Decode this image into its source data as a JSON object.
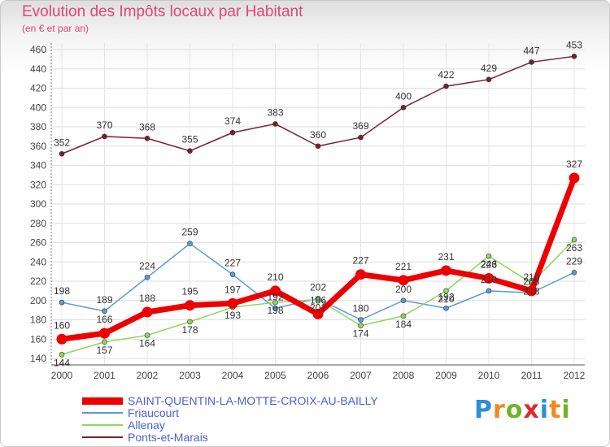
{
  "chart_data": {
    "type": "line",
    "title": "Evolution des Impôts locaux par Habitant",
    "subtitle": "(en € et par an)",
    "ylim": [
      140,
      460
    ],
    "yticks": [
      140,
      160,
      180,
      200,
      220,
      240,
      260,
      280,
      300,
      320,
      340,
      360,
      380,
      400,
      420,
      440,
      460
    ],
    "categories": [
      "2000",
      "2001",
      "2002",
      "2003",
      "2004",
      "2005",
      "2006",
      "2007",
      "2008",
      "2009",
      "2010",
      "2011",
      "2012"
    ],
    "series": [
      {
        "name": "Ponts-et-Marais",
        "color": "#7a1f2b",
        "values": [
          352,
          370,
          368,
          355,
          374,
          383,
          360,
          369,
          400,
          422,
          429,
          447,
          453
        ],
        "labels": [
          "352",
          "370",
          "368",
          "355",
          "374",
          "383",
          "360",
          "369",
          "400",
          "422",
          "429",
          "447",
          "453"
        ]
      },
      {
        "name": "Friaucourt",
        "color": "#5b9bd5",
        "values": [
          198,
          189,
          224,
          259,
          227,
          192,
          202,
          180,
          200,
          192,
          210,
          208,
          229
        ],
        "labels": [
          "198",
          "189",
          "224",
          "259",
          "227",
          "192",
          "202",
          "180",
          "200",
          "192",
          "210",
          "208",
          "229"
        ]
      },
      {
        "name": "Allenay",
        "color": "#8fd460",
        "values": [
          144,
          157,
          164,
          178,
          193,
          198,
          201,
          174,
          184,
          210,
          246,
          218,
          263
        ],
        "labels": [
          "144",
          "157",
          "164",
          "178",
          "193",
          "198",
          "201",
          "174",
          "184",
          "210",
          "246",
          "218",
          "263"
        ]
      },
      {
        "name": "SAINT-QUENTIN-LA-MOTTE-CROIX-AU-BAILLY",
        "color": "#ee0000",
        "values": [
          160,
          166,
          188,
          195,
          197,
          210,
          186,
          227,
          221,
          231,
          223,
          210,
          327
        ],
        "labels": [
          "160",
          "166",
          "188",
          "195",
          "197",
          "210",
          "186",
          "227",
          "221",
          "231",
          "223",
          "210",
          "327"
        ]
      }
    ]
  },
  "legend": [
    {
      "name": "SAINT-QUENTIN-LA-MOTTE-CROIX-AU-BAILLY",
      "color": "#ee0000",
      "thick": true
    },
    {
      "name": "Friaucourt",
      "color": "#5b9bd5",
      "thick": false
    },
    {
      "name": "Allenay",
      "color": "#8fd460",
      "thick": false
    },
    {
      "name": "Ponts-et-Marais",
      "color": "#7a1f2b",
      "thick": false
    }
  ],
  "logo": {
    "letters": [
      "P",
      "r",
      "o",
      "x",
      "i",
      "t",
      "i"
    ],
    "colors": [
      "#2d8fd6",
      "#f08a1c",
      "#6fb32c",
      "#e0282f",
      "#2d8fd6",
      "#f08a1c",
      "#6fb32c"
    ]
  }
}
